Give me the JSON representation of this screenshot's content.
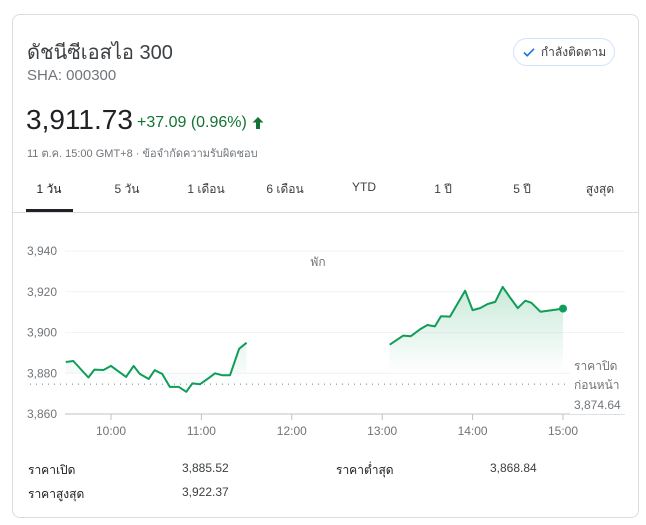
{
  "header": {
    "title": "ดัชนีซีเอสไอ 300",
    "ticker": "SHA: 000300",
    "follow_label": "กำลังติดตาม"
  },
  "quote": {
    "price": "3,911.73",
    "change": "+37.09 (0.96%)",
    "direction": "up",
    "timestamp": "11 ต.ค. 15:00 GMT+8",
    "separator": " · ",
    "disclaimer": "ข้อจำกัดความรับผิดชอบ"
  },
  "tabs": [
    {
      "label": "1 วัน",
      "active": true
    },
    {
      "label": "5 วัน"
    },
    {
      "label": "1 เดือน"
    },
    {
      "label": "6 เดือน"
    },
    {
      "label": "YTD"
    },
    {
      "label": "1 ปี"
    },
    {
      "label": "5 ปี"
    },
    {
      "label": "สูงสุด"
    }
  ],
  "colors": {
    "up": "#137333",
    "line": "#0f9d58",
    "accent": "#1a73e8"
  },
  "chart_data": {
    "type": "line",
    "ylim": [
      3860,
      3940
    ],
    "yticks": [
      "3,940",
      "3,920",
      "3,900",
      "3,880",
      "3,860"
    ],
    "ytick_values": [
      3940,
      3920,
      3900,
      3880,
      3860
    ],
    "xticks": [
      "10:00",
      "11:00",
      "12:00",
      "13:00",
      "14:00",
      "15:00"
    ],
    "xlim": [
      "09:30",
      "15:40"
    ],
    "grid": true,
    "break_label": "พัก",
    "previous_close": {
      "label_line1": "ราคาปิด",
      "label_line2": "ก่อนหน้า",
      "value_label": "3,874.64",
      "value": 3874.64
    },
    "series": [
      {
        "segment": "morning",
        "x": [
          "09:30",
          "09:35",
          "09:45",
          "09:49",
          "09:55",
          "10:00",
          "10:10",
          "10:15",
          "10:19",
          "10:25",
          "10:29",
          "10:34",
          "10:39",
          "10:45",
          "10:50",
          "10:54",
          "10:59",
          "11:05",
          "11:09",
          "11:14",
          "11:19",
          "11:25",
          "11:30"
        ],
        "y": [
          3885.5,
          3886,
          3877.9,
          3881.8,
          3881.6,
          3883.6,
          3878.2,
          3883.6,
          3879.8,
          3877.2,
          3881.5,
          3879.7,
          3873.3,
          3873.3,
          3870.9,
          3875,
          3874.6,
          3877.7,
          3880,
          3879,
          3879,
          3892,
          3895
        ]
      },
      {
        "segment": "afternoon",
        "x": [
          "13:05",
          "13:14",
          "13:19",
          "13:25",
          "13:30",
          "13:35",
          "13:39",
          "13:45",
          "13:55",
          "14:00",
          "14:05",
          "14:10",
          "14:15",
          "14:20",
          "14:25",
          "14:30",
          "14:35",
          "14:39",
          "14:45",
          "14:50",
          "15:00"
        ],
        "y": [
          3894,
          3898.5,
          3898.2,
          3901.5,
          3903.7,
          3903,
          3908,
          3907.8,
          3920.5,
          3911,
          3912,
          3914,
          3915,
          3922.4,
          3917,
          3912,
          3915.6,
          3914.6,
          3910.2,
          3910.7,
          3911.73
        ]
      }
    ]
  },
  "stats": [
    {
      "label": "ราคาเปิด",
      "value": "3,885.52"
    },
    {
      "label": "ราคาต่ำสุด",
      "value": "3,868.84"
    },
    {
      "label": "ราคาสูงสุด",
      "value": "3,922.37"
    }
  ]
}
